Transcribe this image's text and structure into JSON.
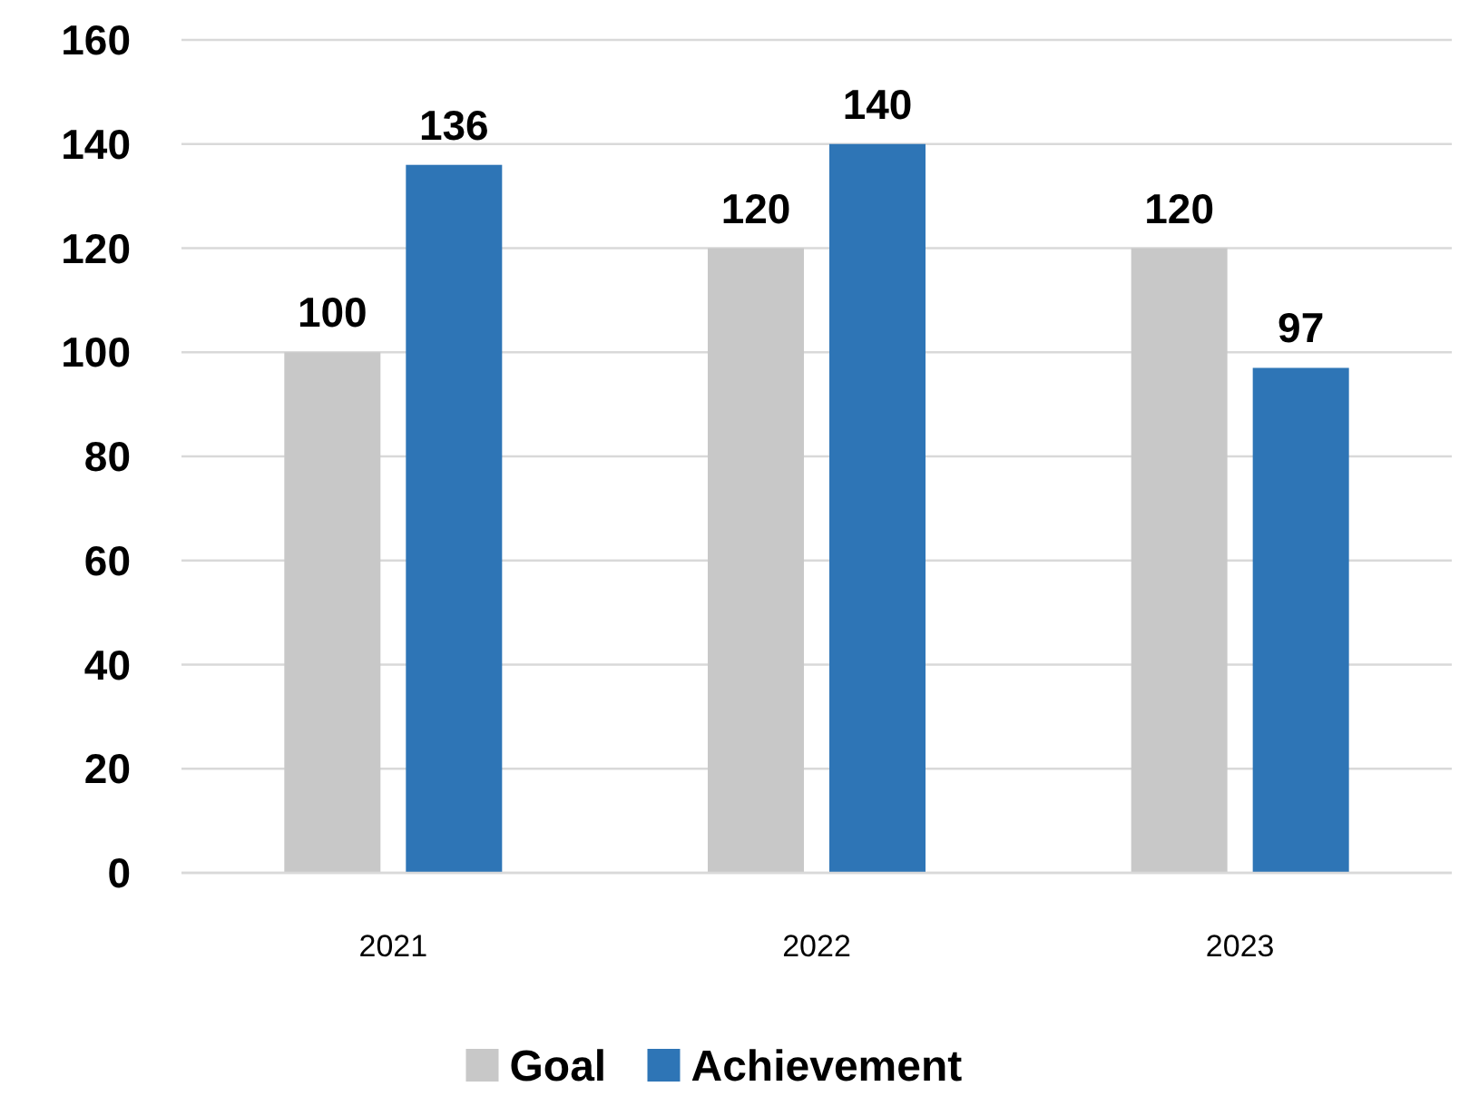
{
  "chart_data": {
    "type": "bar",
    "categories": [
      "2021",
      "2022",
      "2023"
    ],
    "series": [
      {
        "name": "Goal",
        "color": "#c8c8c8",
        "values": [
          100,
          120,
          120
        ]
      },
      {
        "name": "Achievement",
        "color": "#2e75b6",
        "values": [
          136,
          140,
          97
        ]
      }
    ],
    "ylim": [
      0,
      160
    ],
    "yticks": [
      0,
      20,
      40,
      60,
      80,
      100,
      120,
      140,
      160
    ],
    "grid": "y",
    "legend": "bottom",
    "data_labels": true
  }
}
